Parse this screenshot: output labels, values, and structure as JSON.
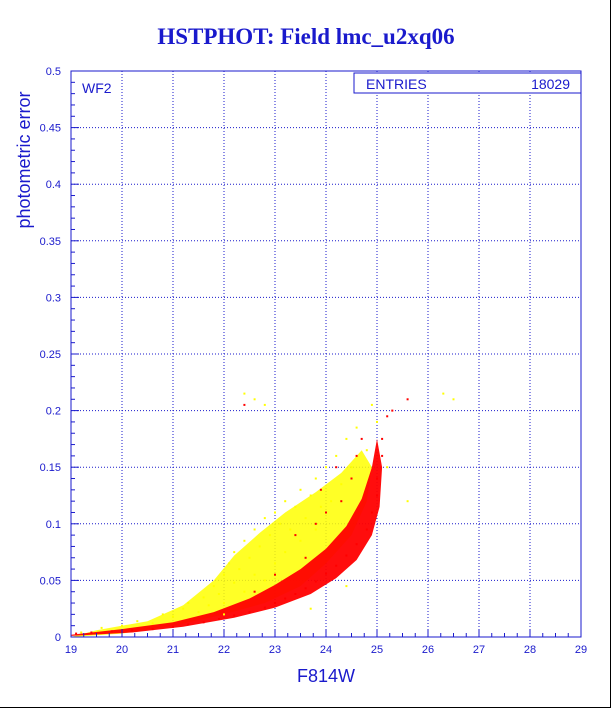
{
  "title": "HSTPHOT: Field lmc_u2xq06",
  "chart_data": {
    "type": "scatter",
    "xlabel": "F814W",
    "ylabel": "photometric error",
    "xlim": [
      19,
      29
    ],
    "ylim": [
      0,
      0.5
    ],
    "x_ticks": [
      19,
      20,
      21,
      22,
      23,
      24,
      25,
      26,
      27,
      28,
      29
    ],
    "y_ticks": [
      0,
      0.05,
      0.1,
      0.15,
      0.2,
      0.25,
      0.3,
      0.35,
      0.4,
      0.45,
      0.5
    ],
    "grid": true,
    "panel_label": "WF2",
    "stats": {
      "label": "ENTRIES",
      "value": "18029"
    },
    "series": [
      {
        "color": "#ffff00",
        "marker": "dot",
        "points": [
          [
            19.2,
            0.004
          ],
          [
            19.6,
            0.008
          ],
          [
            20.0,
            0.01
          ],
          [
            20.3,
            0.014
          ],
          [
            20.6,
            0.012
          ],
          [
            20.8,
            0.02
          ],
          [
            21.0,
            0.018
          ],
          [
            21.2,
            0.025
          ],
          [
            21.3,
            0.03
          ],
          [
            21.5,
            0.022
          ],
          [
            21.6,
            0.035
          ],
          [
            21.7,
            0.028
          ],
          [
            21.8,
            0.045
          ],
          [
            21.9,
            0.038
          ],
          [
            22.0,
            0.055
          ],
          [
            22.0,
            0.03
          ],
          [
            22.1,
            0.065
          ],
          [
            22.2,
            0.048
          ],
          [
            22.2,
            0.075
          ],
          [
            22.3,
            0.06
          ],
          [
            22.4,
            0.085
          ],
          [
            22.4,
            0.04
          ],
          [
            22.5,
            0.07
          ],
          [
            22.6,
            0.095
          ],
          [
            22.6,
            0.055
          ],
          [
            22.7,
            0.08
          ],
          [
            22.8,
            0.105
          ],
          [
            22.8,
            0.05
          ],
          [
            22.9,
            0.09
          ],
          [
            23.0,
            0.11
          ],
          [
            23.0,
            0.065
          ],
          [
            23.1,
            0.1
          ],
          [
            23.2,
            0.12
          ],
          [
            23.2,
            0.075
          ],
          [
            23.3,
            0.095
          ],
          [
            23.4,
            0.115
          ],
          [
            23.5,
            0.13
          ],
          [
            23.5,
            0.085
          ],
          [
            23.6,
            0.105
          ],
          [
            23.7,
            0.125
          ],
          [
            23.8,
            0.14
          ],
          [
            23.8,
            0.095
          ],
          [
            23.9,
            0.115
          ],
          [
            24.0,
            0.15
          ],
          [
            24.1,
            0.12
          ],
          [
            24.2,
            0.16
          ],
          [
            24.3,
            0.135
          ],
          [
            24.4,
            0.175
          ],
          [
            24.5,
            0.15
          ],
          [
            24.6,
            0.185
          ],
          [
            24.8,
            0.165
          ],
          [
            25.0,
            0.19
          ],
          [
            22.4,
            0.215
          ],
          [
            22.6,
            0.21
          ],
          [
            22.8,
            0.205
          ],
          [
            24.9,
            0.205
          ],
          [
            26.3,
            0.215
          ],
          [
            26.5,
            0.21
          ],
          [
            22.0,
            0.02
          ],
          [
            23.0,
            0.03
          ],
          [
            23.7,
            0.025
          ],
          [
            24.4,
            0.045
          ],
          [
            25.2,
            0.15
          ],
          [
            25.6,
            0.12
          ]
        ]
      },
      {
        "color": "#ff0000",
        "marker": "dot",
        "points": [
          [
            19.1,
            0.003
          ],
          [
            19.4,
            0.004
          ],
          [
            19.8,
            0.005
          ],
          [
            20.2,
            0.006
          ],
          [
            20.6,
            0.007
          ],
          [
            21.0,
            0.009
          ],
          [
            21.3,
            0.011
          ],
          [
            21.6,
            0.013
          ],
          [
            21.9,
            0.016
          ],
          [
            22.2,
            0.019
          ],
          [
            22.5,
            0.022
          ],
          [
            22.8,
            0.026
          ],
          [
            23.0,
            0.03
          ],
          [
            23.2,
            0.034
          ],
          [
            23.4,
            0.038
          ],
          [
            23.6,
            0.043
          ],
          [
            23.8,
            0.049
          ],
          [
            24.0,
            0.056
          ],
          [
            24.2,
            0.063
          ],
          [
            24.4,
            0.072
          ],
          [
            24.6,
            0.082
          ],
          [
            24.8,
            0.095
          ],
          [
            24.9,
            0.11
          ],
          [
            25.0,
            0.125
          ],
          [
            25.0,
            0.14
          ],
          [
            25.1,
            0.16
          ],
          [
            25.1,
            0.175
          ],
          [
            25.2,
            0.195
          ],
          [
            25.3,
            0.2
          ],
          [
            22.4,
            0.205
          ],
          [
            23.4,
            0.09
          ],
          [
            23.8,
            0.1
          ],
          [
            24.0,
            0.11
          ],
          [
            24.3,
            0.12
          ],
          [
            24.5,
            0.14
          ],
          [
            24.6,
            0.16
          ],
          [
            24.7,
            0.175
          ],
          [
            24.2,
            0.15
          ],
          [
            23.9,
            0.13
          ],
          [
            25.6,
            0.21
          ],
          [
            22.6,
            0.04
          ],
          [
            23.0,
            0.055
          ],
          [
            23.6,
            0.07
          ]
        ]
      }
    ]
  }
}
